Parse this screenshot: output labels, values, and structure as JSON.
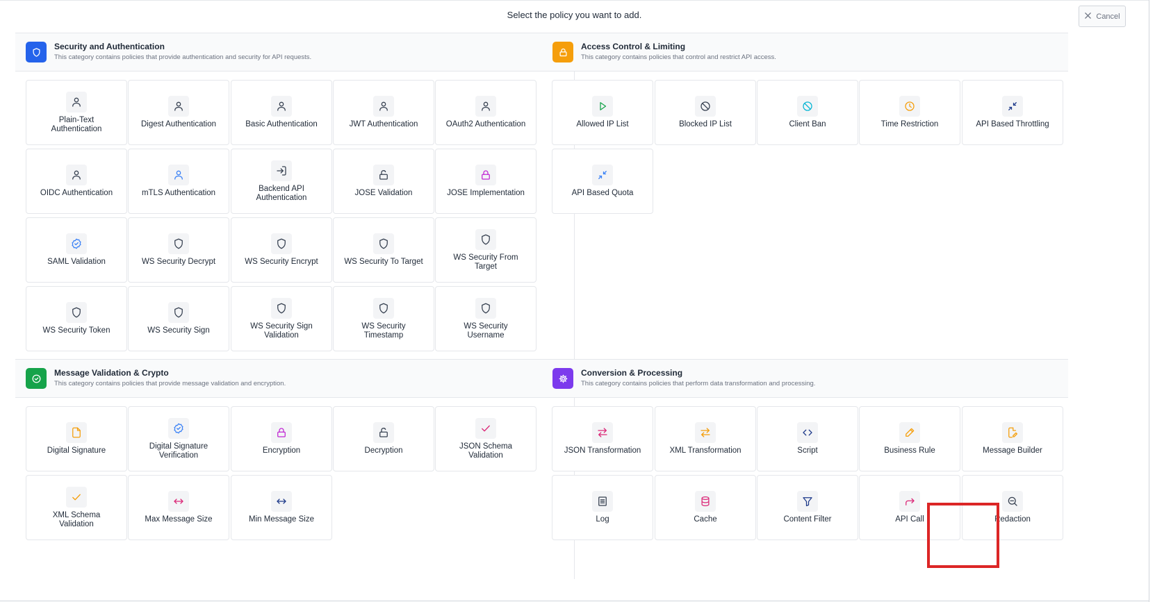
{
  "header": {
    "title": "Select the policy you want to add.",
    "cancel_label": "Cancel"
  },
  "sections": [
    {
      "key": "security",
      "title": "Security and Authentication",
      "description": "This category contains policies that provide authentication and security for API requests.",
      "icon": "shield-icon",
      "icon_bg": "#2563eb",
      "items": [
        {
          "label": "Plain-Text Authentication",
          "icon": "user",
          "color": "#374151"
        },
        {
          "label": "Digest Authentication",
          "icon": "user",
          "color": "#374151"
        },
        {
          "label": "Basic Authentication",
          "icon": "user",
          "color": "#374151"
        },
        {
          "label": "JWT Authentication",
          "icon": "user",
          "color": "#374151"
        },
        {
          "label": "OAuth2 Authentication",
          "icon": "user",
          "color": "#374151"
        },
        {
          "label": "OIDC Authentication",
          "icon": "user",
          "color": "#374151"
        },
        {
          "label": "mTLS Authentication",
          "icon": "user",
          "color": "#3b82f6"
        },
        {
          "label": "Backend API Authentication",
          "icon": "login",
          "color": "#374151"
        },
        {
          "label": "JOSE Validation",
          "icon": "unlock",
          "color": "#374151"
        },
        {
          "label": "JOSE Implementation",
          "icon": "lock",
          "color": "#c026d3"
        },
        {
          "label": "SAML Validation",
          "icon": "badge-check",
          "color": "#3b82f6"
        },
        {
          "label": "WS Security Decrypt",
          "icon": "shield",
          "color": "#374151"
        },
        {
          "label": "WS Security Encrypt",
          "icon": "shield",
          "color": "#374151"
        },
        {
          "label": "WS Security To Target",
          "icon": "shield",
          "color": "#374151"
        },
        {
          "label": "WS Security From Target",
          "icon": "shield",
          "color": "#374151"
        },
        {
          "label": "WS Security Token",
          "icon": "shield",
          "color": "#374151"
        },
        {
          "label": "WS Security Sign",
          "icon": "shield",
          "color": "#374151"
        },
        {
          "label": "WS Security Sign Validation",
          "icon": "shield",
          "color": "#374151"
        },
        {
          "label": "WS Security Timestamp",
          "icon": "shield",
          "color": "#374151"
        },
        {
          "label": "WS Security Username",
          "icon": "shield",
          "color": "#374151"
        }
      ]
    },
    {
      "key": "access",
      "title": "Access Control & Limiting",
      "description": "This category contains policies that control and restrict API access.",
      "icon": "lock-icon",
      "icon_bg": "#f59e0b",
      "items": [
        {
          "label": "Allowed IP List",
          "icon": "play",
          "color": "#16a34a"
        },
        {
          "label": "Blocked IP List",
          "icon": "ban",
          "color": "#374151"
        },
        {
          "label": "Client Ban",
          "icon": "ban",
          "color": "#06b6d4"
        },
        {
          "label": "Time Restriction",
          "icon": "clock",
          "color": "#f59e0b"
        },
        {
          "label": "API Based Throttling",
          "icon": "shrink",
          "color": "#1e3a8a"
        },
        {
          "label": "API Based Quota",
          "icon": "shrink",
          "color": "#3b82f6"
        }
      ]
    },
    {
      "key": "message",
      "title": "Message Validation & Crypto",
      "description": "This category contains policies that provide message validation and encryption.",
      "icon": "check-circle-icon",
      "icon_bg": "#16a34a",
      "items": [
        {
          "label": "Digital Signature",
          "icon": "file",
          "color": "#f59e0b"
        },
        {
          "label": "Digital Signature Verification",
          "icon": "badge-check",
          "color": "#3b82f6"
        },
        {
          "label": "Encryption",
          "icon": "lock",
          "color": "#c026d3"
        },
        {
          "label": "Decryption",
          "icon": "unlock",
          "color": "#374151"
        },
        {
          "label": "JSON Schema Validation",
          "icon": "check",
          "color": "#db2777"
        },
        {
          "label": "XML Schema Validation",
          "icon": "check",
          "color": "#f59e0b"
        },
        {
          "label": "Max Message Size",
          "icon": "arrows-h",
          "color": "#db2777"
        },
        {
          "label": "Min Message Size",
          "icon": "arrows-h",
          "color": "#1e3a8a"
        }
      ]
    },
    {
      "key": "conversion",
      "title": "Conversion & Processing",
      "description": "This category contains policies that perform data transformation and processing.",
      "icon": "gear-icon",
      "icon_bg": "#7c3aed",
      "items": [
        {
          "label": "JSON Transformation",
          "icon": "swap",
          "color": "#db2777"
        },
        {
          "label": "XML Transformation",
          "icon": "swap",
          "color": "#f59e0b"
        },
        {
          "label": "Script",
          "icon": "code",
          "color": "#1e3a8a"
        },
        {
          "label": "Business Rule",
          "icon": "pencil",
          "color": "#f59e0b"
        },
        {
          "label": "Message Builder",
          "icon": "file-edit",
          "color": "#f59e0b"
        },
        {
          "label": "Log",
          "icon": "list",
          "color": "#374151"
        },
        {
          "label": "Cache",
          "icon": "database",
          "color": "#db2777"
        },
        {
          "label": "Content Filter",
          "icon": "filter",
          "color": "#1e3a8a"
        },
        {
          "label": "API Call",
          "icon": "forward",
          "color": "#db2777"
        },
        {
          "label": "Redaction",
          "icon": "zoom-out",
          "color": "#374151"
        }
      ]
    }
  ]
}
